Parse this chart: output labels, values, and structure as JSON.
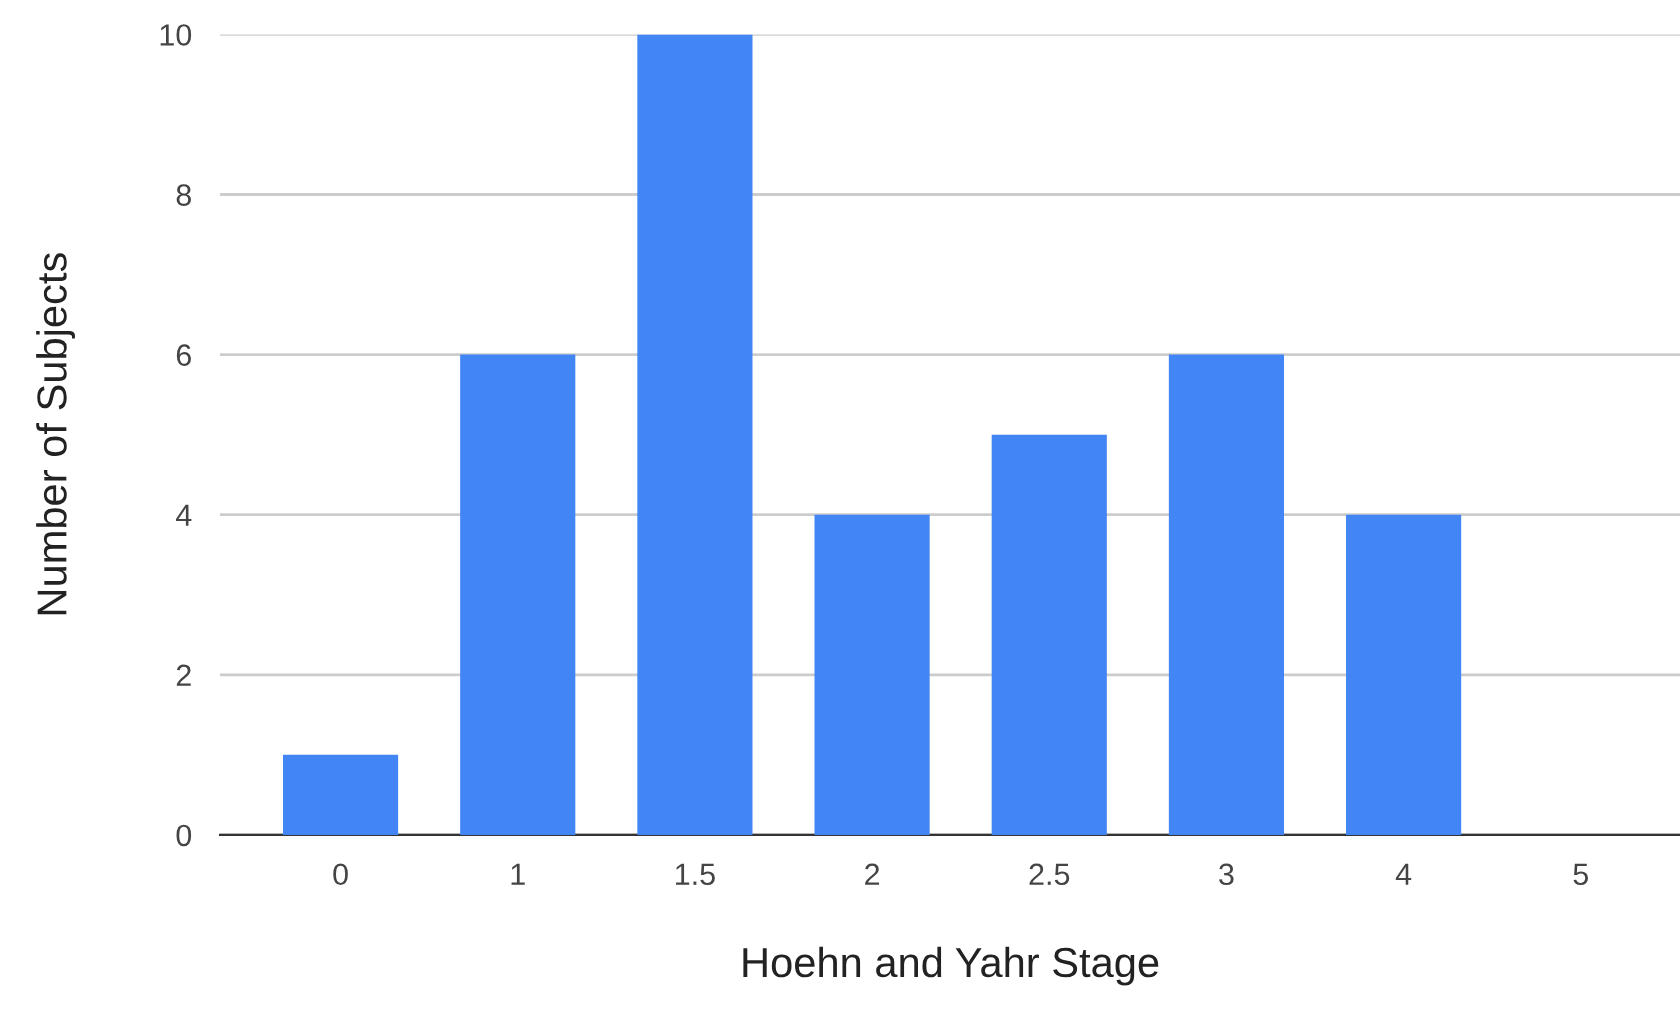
{
  "chart_data": {
    "type": "bar",
    "xlabel": "Hoehn and Yahr Stage",
    "ylabel": "Number of Subjects",
    "categories": [
      "0",
      "1",
      "1.5",
      "2",
      "2.5",
      "3",
      "4",
      "5"
    ],
    "values": [
      1,
      6,
      10,
      4,
      5,
      6,
      4,
      0
    ],
    "color": "#4285f4",
    "ylim": [
      0,
      10
    ],
    "yticks": [
      0,
      2,
      4,
      6,
      8,
      10
    ],
    "grid": "y",
    "legend": false
  }
}
